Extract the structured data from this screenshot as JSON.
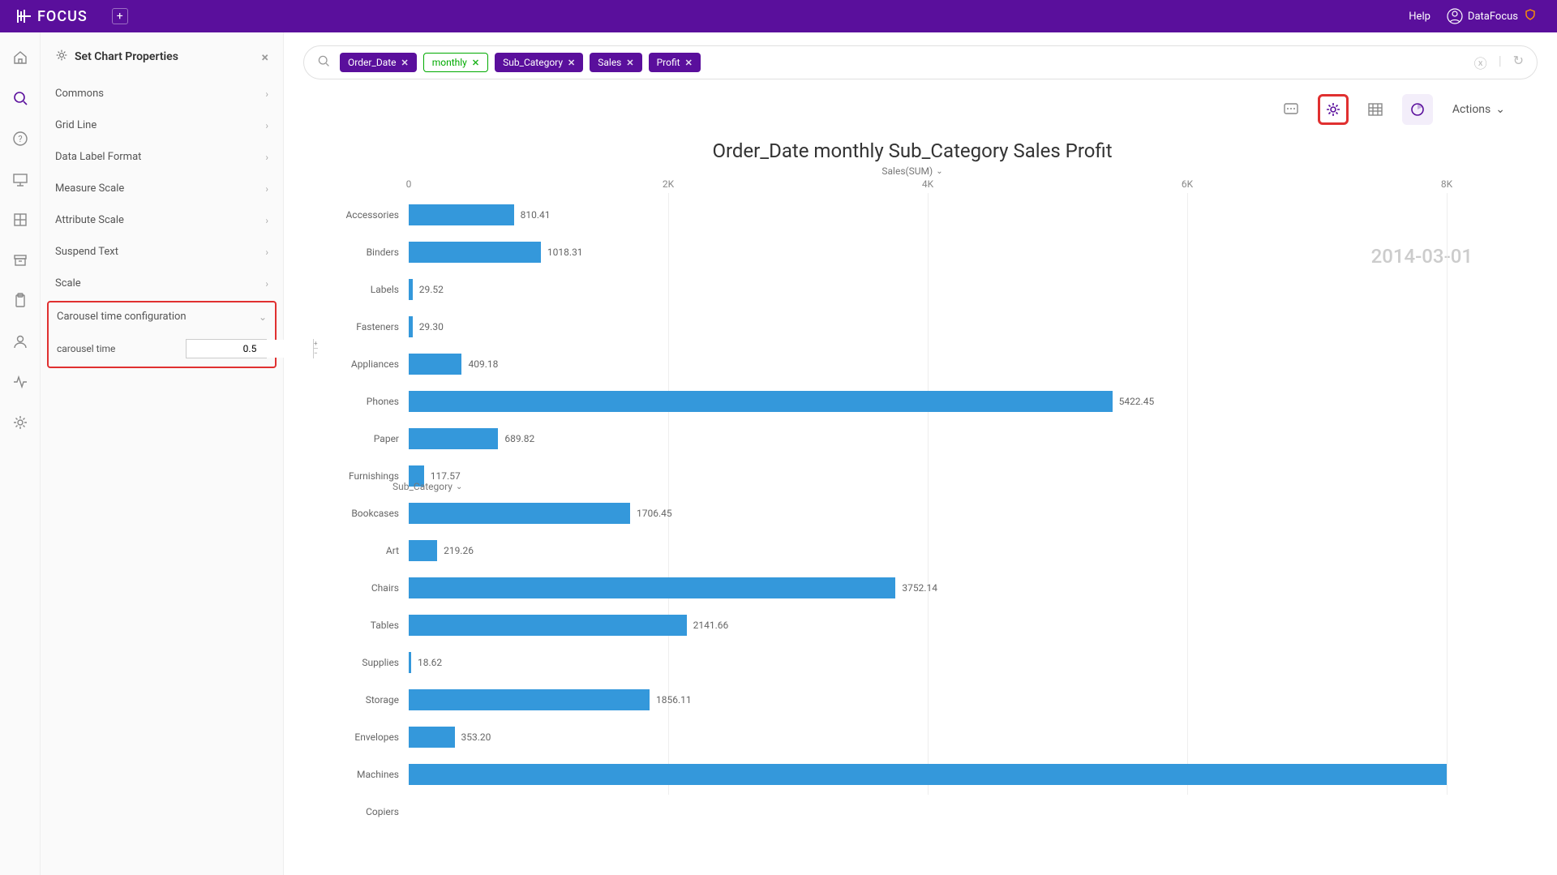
{
  "topbar": {
    "brand": "FOCUS",
    "help": "Help",
    "username": "DataFocus"
  },
  "sidepanel": {
    "title": "Set Chart Properties",
    "items": [
      {
        "label": "Commons"
      },
      {
        "label": "Grid Line"
      },
      {
        "label": "Data Label Format"
      },
      {
        "label": "Measure Scale"
      },
      {
        "label": "Attribute Scale"
      },
      {
        "label": "Suspend Text"
      },
      {
        "label": "Scale"
      }
    ],
    "carousel": {
      "section_label": "Carousel time configuration",
      "field_label": "carousel time",
      "value": "0.5"
    }
  },
  "query": {
    "pills": [
      {
        "text": "Order_Date",
        "style": "purple"
      },
      {
        "text": "monthly",
        "style": "green"
      },
      {
        "text": "Sub_Category",
        "style": "purple"
      },
      {
        "text": "Sales",
        "style": "purple"
      },
      {
        "text": "Profit",
        "style": "purple"
      }
    ]
  },
  "toolbar": {
    "actions_label": "Actions"
  },
  "chart": {
    "title": "Order_Date monthly Sub_Category Sales Profit",
    "x_axis_label": "Sales(SUM)",
    "y_axis_label": "Sub_Category",
    "timestamp": "2014-03-01",
    "x_max": 8000,
    "x_ticks": [
      {
        "pos": 0,
        "label": "0"
      },
      {
        "pos": 2000,
        "label": "2K"
      },
      {
        "pos": 4000,
        "label": "4K"
      },
      {
        "pos": 6000,
        "label": "6K"
      },
      {
        "pos": 8000,
        "label": "8K"
      }
    ],
    "bar_color": "#3498db",
    "rows": [
      {
        "cat": "Accessories",
        "value": 810.41,
        "label": "810.41"
      },
      {
        "cat": "Binders",
        "value": 1018.31,
        "label": "1018.31"
      },
      {
        "cat": "Labels",
        "value": 29.52,
        "label": "29.52"
      },
      {
        "cat": "Fasteners",
        "value": 29.3,
        "label": "29.30"
      },
      {
        "cat": "Appliances",
        "value": 409.18,
        "label": "409.18"
      },
      {
        "cat": "Phones",
        "value": 5422.45,
        "label": "5422.45"
      },
      {
        "cat": "Paper",
        "value": 689.82,
        "label": "689.82"
      },
      {
        "cat": "Furnishings",
        "value": 117.57,
        "label": "117.57"
      },
      {
        "cat": "Bookcases",
        "value": 1706.45,
        "label": "1706.45"
      },
      {
        "cat": "Art",
        "value": 219.26,
        "label": "219.26"
      },
      {
        "cat": "Chairs",
        "value": 3752.14,
        "label": "3752.14"
      },
      {
        "cat": "Tables",
        "value": 2141.66,
        "label": "2141.66"
      },
      {
        "cat": "Supplies",
        "value": 18.62,
        "label": "18.62"
      },
      {
        "cat": "Storage",
        "value": 1856.11,
        "label": "1856.11"
      },
      {
        "cat": "Envelopes",
        "value": 353.2,
        "label": "353.20"
      },
      {
        "cat": "Machines",
        "value": 8100,
        "label": ""
      },
      {
        "cat": "Copiers",
        "value": 0,
        "label": ""
      }
    ]
  }
}
